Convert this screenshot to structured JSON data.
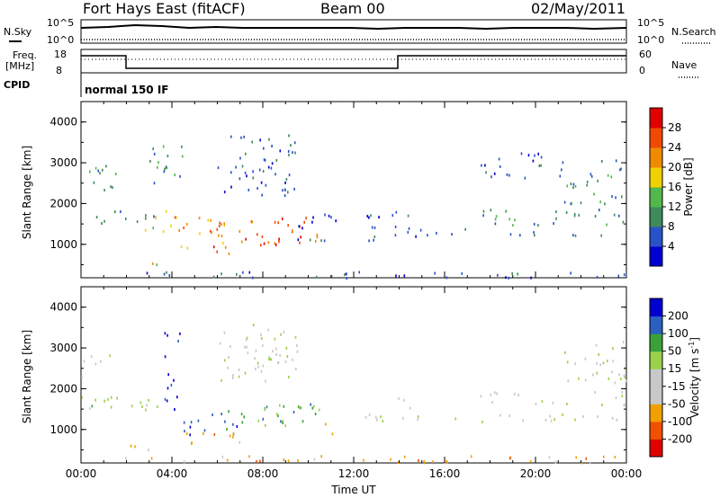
{
  "header": {
    "station": "Fort Hays East (fitACF)",
    "beam": "Beam 00",
    "date": "02/May/2011"
  },
  "summary_panels": {
    "nsky_label": "N.Sky",
    "nsearch_label": "N.Search",
    "noise_ticks": [
      "10^5",
      "10^0"
    ],
    "freq_label_1": "Freq.",
    "freq_label_2": "[MHz]",
    "freq_ticks": [
      "18",
      "8"
    ],
    "nave_label": "Nave",
    "nave_ticks": [
      "60",
      "0"
    ],
    "cpid_label": "CPID",
    "cpid_value": "normal 150 IF"
  },
  "colors": {
    "power": [
      "#0000d0",
      "#2a52c8",
      "#3f8a5a",
      "#52b84c",
      "#f0d000",
      "#f08a00",
      "#f04a00",
      "#e00000"
    ],
    "velocity": [
      "#e00000",
      "#f05000",
      "#f0a000",
      "#c8c8c8",
      "#c8c8c8",
      "#9ad04a",
      "#3aa03a",
      "#2a60c0",
      "#0000d0"
    ]
  },
  "chart_data": [
    {
      "type": "heatmap",
      "name": "power",
      "xlabel": "",
      "ylabel": "Slant Range [km]",
      "xlim": [
        "00:00",
        "24:00"
      ],
      "ylim": [
        180,
        4500
      ],
      "yticks": [
        "1000",
        "2000",
        "3000",
        "4000"
      ],
      "colorbar": {
        "label": "Power [dB]",
        "ticks": [
          "4",
          "8",
          "12",
          "16",
          "20",
          "24",
          "28"
        ],
        "range": [
          0,
          32
        ]
      },
      "scatter_regions": [
        {
          "t": [
            0.0,
            1.7
          ],
          "r": [
            2300,
            2950
          ],
          "level": 2
        },
        {
          "t": [
            0.0,
            3.5
          ],
          "r": [
            1500,
            1850
          ],
          "level": 2
        },
        {
          "t": [
            2.0,
            3.4
          ],
          "r": [
            520,
            640
          ],
          "level": 4
        },
        {
          "t": [
            2.8,
            4.2
          ],
          "r": [
            1200,
            1900
          ],
          "level": 4
        },
        {
          "t": [
            3.0,
            4.5
          ],
          "r": [
            2400,
            3500
          ],
          "level": 2
        },
        {
          "t": [
            4.0,
            6.5
          ],
          "r": [
            900,
            1700
          ],
          "level": 5
        },
        {
          "t": [
            5.5,
            8.5
          ],
          "r": [
            800,
            1400
          ],
          "level": 6
        },
        {
          "t": [
            7.0,
            10.5
          ],
          "r": [
            1000,
            1700
          ],
          "level": 6
        },
        {
          "t": [
            6.0,
            9.5
          ],
          "r": [
            2200,
            3700
          ],
          "level": 1
        },
        {
          "t": [
            9.5,
            11.5
          ],
          "r": [
            1100,
            1800
          ],
          "level": 1
        },
        {
          "t": [
            12.5,
            14.5
          ],
          "r": [
            1100,
            1900
          ],
          "level": 1
        },
        {
          "t": [
            14.5,
            24.0
          ],
          "r": [
            1200,
            1400
          ],
          "level": 1
        },
        {
          "t": [
            17.5,
            24.0
          ],
          "r": [
            1500,
            1900
          ],
          "level": 2
        },
        {
          "t": [
            17.5,
            20.5
          ],
          "r": [
            2600,
            3300
          ],
          "level": 1
        },
        {
          "t": [
            21.0,
            24.0
          ],
          "r": [
            2000,
            3100
          ],
          "level": 2
        },
        {
          "t": [
            0.0,
            24.0
          ],
          "r": [
            200,
            350
          ],
          "level": 1
        }
      ]
    },
    {
      "type": "heatmap",
      "name": "velocity",
      "xlabel": "Time UT",
      "ylabel": "Slant Range [km]",
      "xlim": [
        "00:00",
        "24:00"
      ],
      "ylim": [
        180,
        4500
      ],
      "xticks": [
        "00:00",
        "04:00",
        "08:00",
        "12:00",
        "16:00",
        "20:00",
        "00:00"
      ],
      "yticks": [
        "1000",
        "2000",
        "3000",
        "4000"
      ],
      "colorbar": {
        "label": "Velocity [m s",
        "unit_sup": "-1",
        "unit_close": "]",
        "ticks": [
          "200",
          "100",
          "50",
          "15",
          "-15",
          "-50",
          "-100",
          "-200"
        ],
        "range": [
          -300,
          300
        ]
      },
      "scatter_regions": [
        {
          "t": [
            0.0,
            1.5
          ],
          "r": [
            2300,
            2900
          ],
          "level": 4
        },
        {
          "t": [
            0.0,
            3.5
          ],
          "r": [
            1450,
            1850
          ],
          "level": 5
        },
        {
          "t": [
            2.0,
            3.4
          ],
          "r": [
            520,
            640
          ],
          "level": 2
        },
        {
          "t": [
            3.5,
            4.5
          ],
          "r": [
            1500,
            3400
          ],
          "level": 8
        },
        {
          "t": [
            4.5,
            7.0
          ],
          "r": [
            900,
            1600
          ],
          "level": 7
        },
        {
          "t": [
            4.5,
            7.5
          ],
          "r": [
            600,
            950
          ],
          "level": 2
        },
        {
          "t": [
            7.0,
            10.5
          ],
          "r": [
            1000,
            1700
          ],
          "level": 6
        },
        {
          "t": [
            6.0,
            9.5
          ],
          "r": [
            2200,
            3600
          ],
          "level": 4
        },
        {
          "t": [
            10.0,
            11.5
          ],
          "r": [
            900,
            1300
          ],
          "level": 2
        },
        {
          "t": [
            12.5,
            14.5
          ],
          "r": [
            1200,
            1800
          ],
          "level": 4
        },
        {
          "t": [
            14.5,
            24.0
          ],
          "r": [
            1200,
            1400
          ],
          "level": 4
        },
        {
          "t": [
            17.5,
            24.0
          ],
          "r": [
            1600,
            1950
          ],
          "level": 4
        },
        {
          "t": [
            21.0,
            24.0
          ],
          "r": [
            2100,
            3200
          ],
          "level": 4
        },
        {
          "t": [
            0.0,
            24.0
          ],
          "r": [
            200,
            380
          ],
          "level": 2
        }
      ]
    }
  ]
}
